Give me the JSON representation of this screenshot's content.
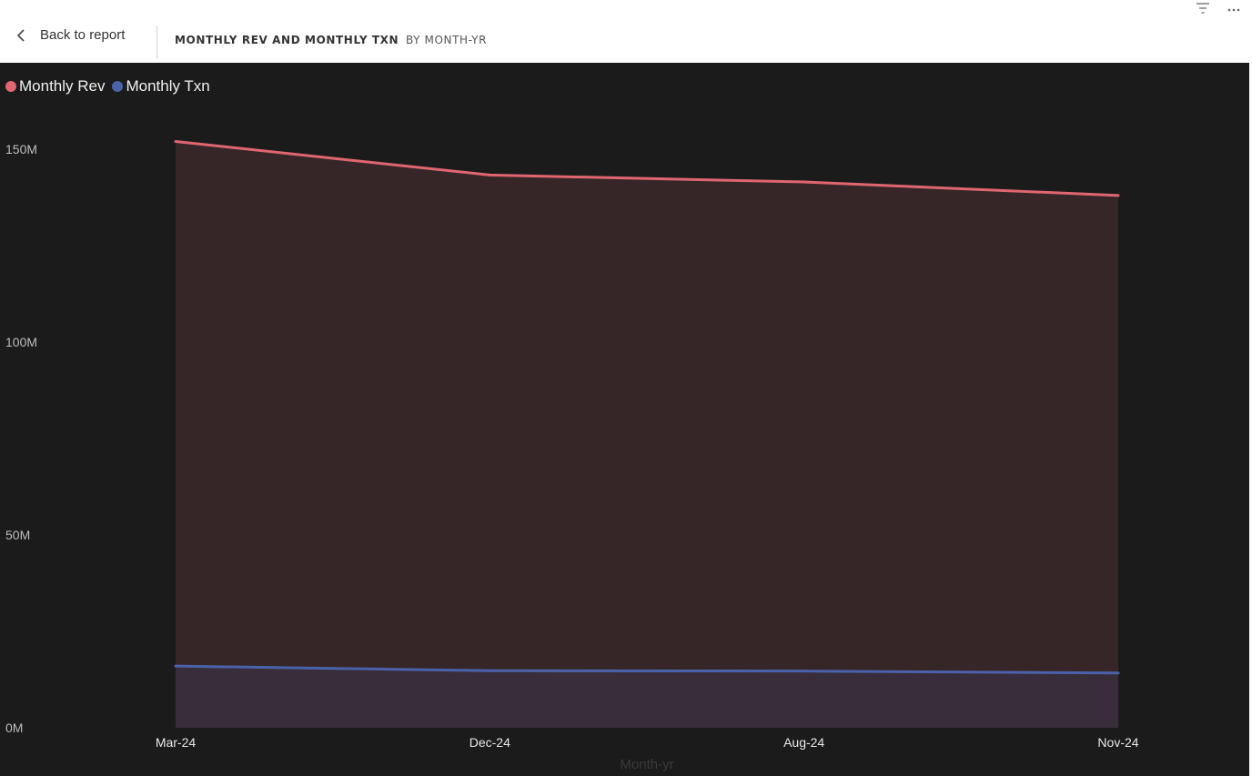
{
  "header": {
    "back_label": "Back to report",
    "title": "MONTHLY REV AND MONTHLY TXN",
    "subtitle": "BY MONTH-YR",
    "icons": [
      "filter-icon",
      "more-options-icon"
    ]
  },
  "colors": {
    "background": "#1b1b1b",
    "rev": "#e06670",
    "txn": "#4a62ab",
    "rev_fill": "#362627",
    "txn_fill": "#3a2d3b"
  },
  "chart_data": {
    "type": "area",
    "xlabel": "Month-yr",
    "ylabel": "",
    "categories": [
      "Mar-24",
      "Dec-24",
      "Aug-24",
      "Nov-24"
    ],
    "series": [
      {
        "name": "Monthly Rev",
        "values": [
          152,
          143.3,
          141.5,
          138
        ]
      },
      {
        "name": "Monthly Txn",
        "values": [
          16,
          14.8,
          14.7,
          14.2
        ]
      }
    ],
    "y_ticks": [
      {
        "value": 0,
        "label": "0M"
      },
      {
        "value": 50,
        "label": "50M"
      },
      {
        "value": 100,
        "label": "100M"
      },
      {
        "value": 150,
        "label": "150M"
      }
    ],
    "ylim": [
      0,
      150
    ],
    "grid": false,
    "legend": "top-left"
  }
}
